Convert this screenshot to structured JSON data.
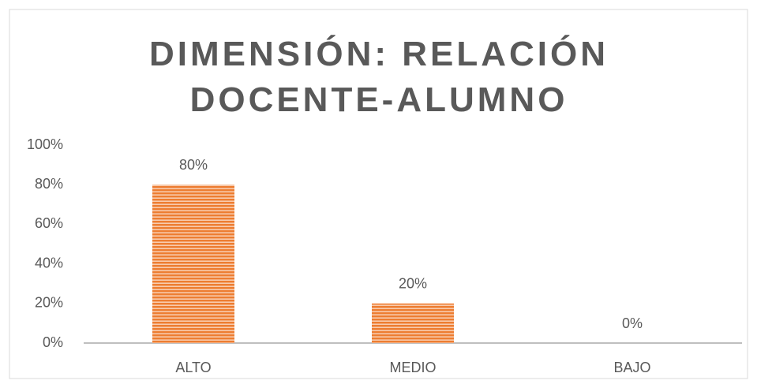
{
  "chart_data": {
    "type": "bar",
    "title": "DIMENSIÓN: RELACIÓN DOCENTE-ALUMNO",
    "categories": [
      "ALTO",
      "MEDIO",
      "BAJO"
    ],
    "values": [
      80,
      20,
      0
    ],
    "value_labels": [
      "80%",
      "20%",
      "0%"
    ],
    "color": "#ed7d31",
    "ylim": [
      0,
      100
    ],
    "yticks": [
      {
        "value": 0,
        "label": "0%"
      },
      {
        "value": 20,
        "label": "20%"
      },
      {
        "value": 40,
        "label": "40%"
      },
      {
        "value": 60,
        "label": "60%"
      },
      {
        "value": 80,
        "label": "80%"
      },
      {
        "value": 100,
        "label": "100%"
      }
    ],
    "grid": false
  }
}
